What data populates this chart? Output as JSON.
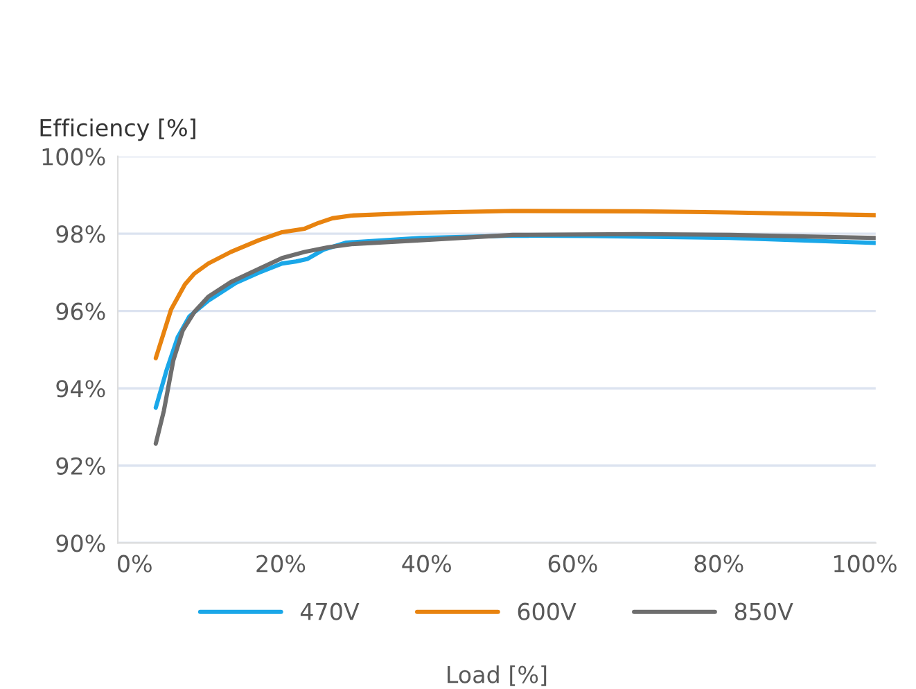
{
  "chart_data": {
    "type": "line",
    "ylabel": "Efficiency [%]",
    "xlabel": "Load [%]",
    "xlim": [
      -2.3,
      101.5
    ],
    "xticks": [
      {
        "value": 0,
        "label": "0%"
      },
      {
        "value": 20,
        "label": "20%"
      },
      {
        "value": 40,
        "label": "40%"
      },
      {
        "value": 60,
        "label": "60%"
      },
      {
        "value": 80,
        "label": "80%"
      },
      {
        "value": 100,
        "label": "100%"
      }
    ],
    "ylim": [
      90,
      100
    ],
    "yticks": [
      {
        "value": 90,
        "label": "90%"
      },
      {
        "value": 92,
        "label": "92%"
      },
      {
        "value": 94,
        "label": "94%"
      },
      {
        "value": 96,
        "label": "96%"
      },
      {
        "value": 98,
        "label": "98%"
      },
      {
        "value": 100,
        "label": "100%"
      }
    ],
    "grid": "y",
    "legend": "bottom",
    "marker": "none",
    "line_style": "solid",
    "series": [
      {
        "name": "470V",
        "color": "#1aa7e8",
        "x": [
          2.9,
          4.4,
          5.9,
          7.5,
          10.1,
          13.9,
          17.0,
          20.2,
          22.1,
          23.7,
          25.9,
          29.0,
          39.1,
          51.8,
          62.6,
          81.5,
          101.5
        ],
        "values": [
          93.5,
          94.48,
          95.32,
          95.86,
          96.27,
          96.73,
          96.99,
          97.23,
          97.28,
          97.35,
          97.59,
          97.77,
          97.89,
          97.95,
          97.94,
          97.89,
          97.76
        ]
      },
      {
        "name": "600V",
        "color": "#e8830f",
        "x": [
          2.9,
          5.0,
          6.9,
          8.2,
          10.1,
          13.2,
          17.0,
          20.2,
          23.3,
          25.2,
          27.1,
          29.7,
          39.1,
          51.8,
          68.9,
          81.5,
          101.5
        ],
        "values": [
          94.78,
          96.04,
          96.69,
          96.97,
          97.23,
          97.53,
          97.83,
          98.04,
          98.13,
          98.28,
          98.4,
          98.47,
          98.54,
          98.59,
          98.58,
          98.55,
          98.48
        ]
      },
      {
        "name": "850V",
        "color": "#6e6e6e",
        "x": [
          2.9,
          4.0,
          5.3,
          6.6,
          8.2,
          10.1,
          13.2,
          17.0,
          20.2,
          23.3,
          26.5,
          29.7,
          39.1,
          51.8,
          68.9,
          81.5,
          101.5
        ],
        "values": [
          92.57,
          93.41,
          94.72,
          95.5,
          95.98,
          96.37,
          96.75,
          97.09,
          97.37,
          97.53,
          97.65,
          97.73,
          97.83,
          97.97,
          97.99,
          97.97,
          97.89
        ]
      }
    ]
  }
}
